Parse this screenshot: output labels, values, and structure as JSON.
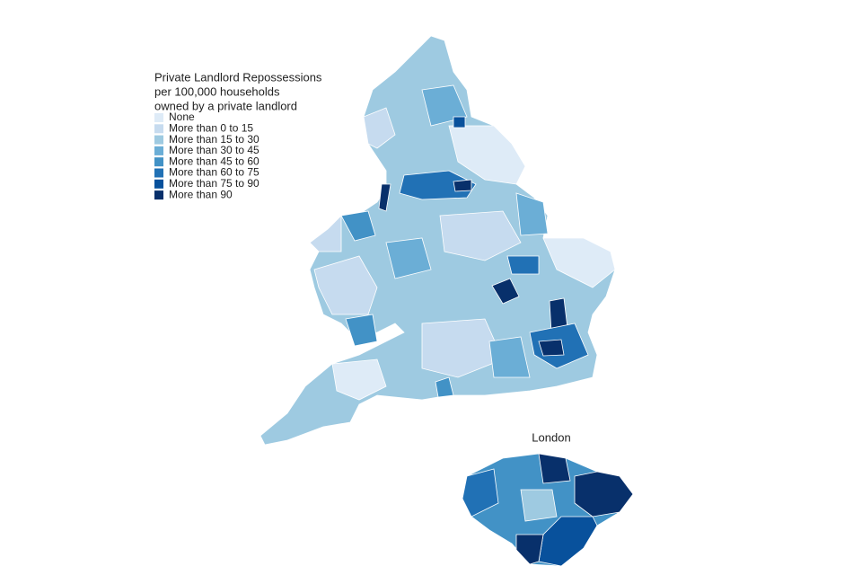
{
  "legend": {
    "title_lines": [
      "Private Landlord Repossessions",
      "per 100,000 households",
      "owned by a private landlord"
    ],
    "items": [
      {
        "label": "None",
        "color": "#deebf7"
      },
      {
        "label": "More than 0 to 15",
        "color": "#c6dbef"
      },
      {
        "label": "More than 15 to 30",
        "color": "#9ecae1"
      },
      {
        "label": "More than 30 to 45",
        "color": "#6baed6"
      },
      {
        "label": "More than 45 to 60",
        "color": "#4292c6"
      },
      {
        "label": "More than 60 to 75",
        "color": "#2171b5"
      },
      {
        "label": "More than 75 to 90",
        "color": "#08519c"
      },
      {
        "label": "More than 90",
        "color": "#08306b"
      }
    ]
  },
  "inset": {
    "label": "London"
  }
}
